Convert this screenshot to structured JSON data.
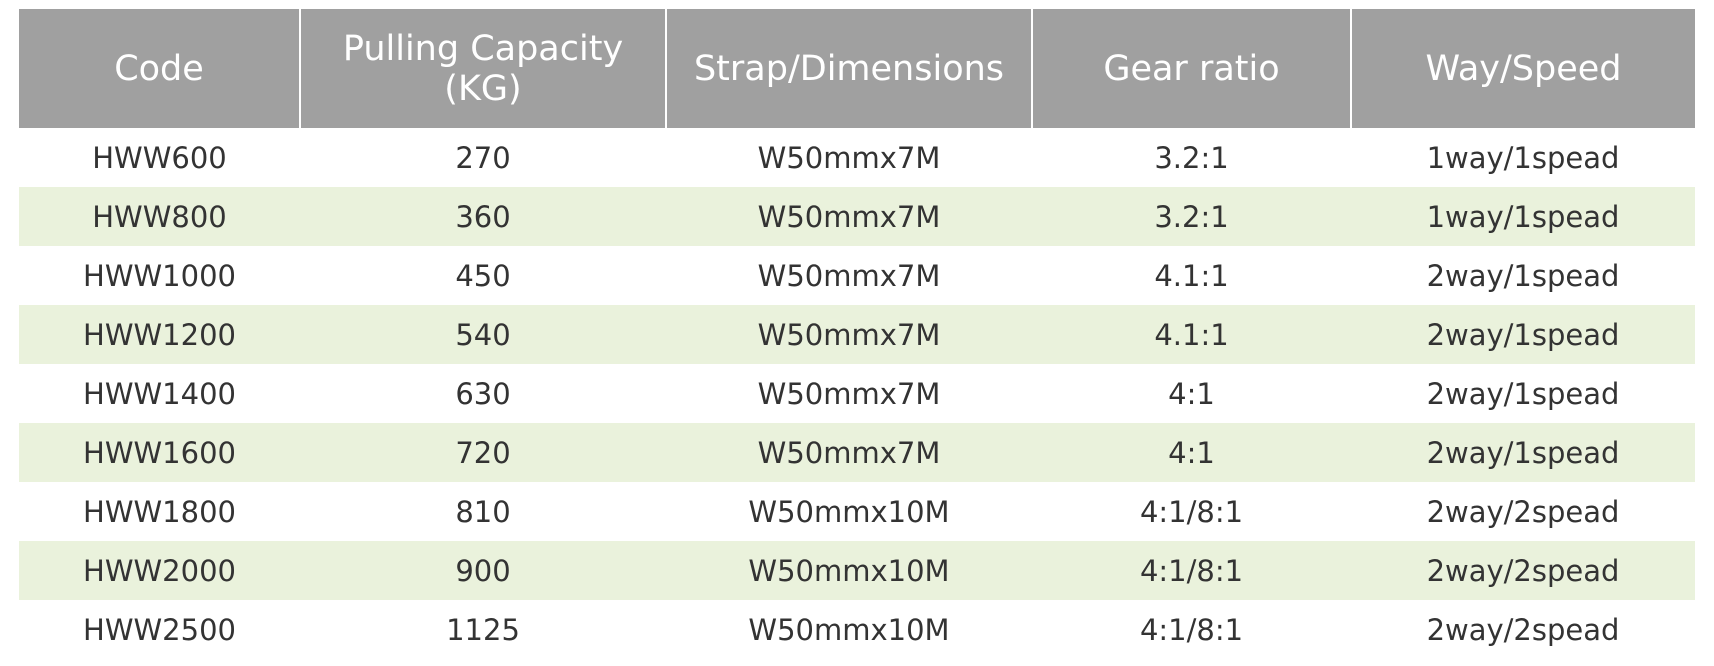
{
  "table": {
    "headers": [
      "Code",
      "Pulling Capacity\n(KG)",
      "Strap/Dimensions",
      "Gear ratio",
      "Way/Speed"
    ],
    "rows": [
      [
        "HWW600",
        "270",
        "W50mmx7M",
        "3.2:1",
        "1way/1spead"
      ],
      [
        "HWW800",
        "360",
        "W50mmx7M",
        "3.2:1",
        "1way/1spead"
      ],
      [
        "HWW1000",
        "450",
        "W50mmx7M",
        "4.1:1",
        "2way/1spead"
      ],
      [
        "HWW1200",
        "540",
        "W50mmx7M",
        "4.1:1",
        "2way/1spead"
      ],
      [
        "HWW1400",
        "630",
        "W50mmx7M",
        "4:1",
        "2way/1spead"
      ],
      [
        "HWW1600",
        "720",
        "W50mmx7M",
        "4:1",
        "2way/1spead"
      ],
      [
        "HWW1800",
        "810",
        "W50mmx10M",
        "4:1/8:1",
        "2way/2spead"
      ],
      [
        "HWW2000",
        "900",
        "W50mmx10M",
        "4:1/8:1",
        "2way/2spead"
      ],
      [
        "HWW2500",
        "1125",
        "W50mmx10M",
        "4:1/8:1",
        "2way/2spead"
      ]
    ]
  }
}
